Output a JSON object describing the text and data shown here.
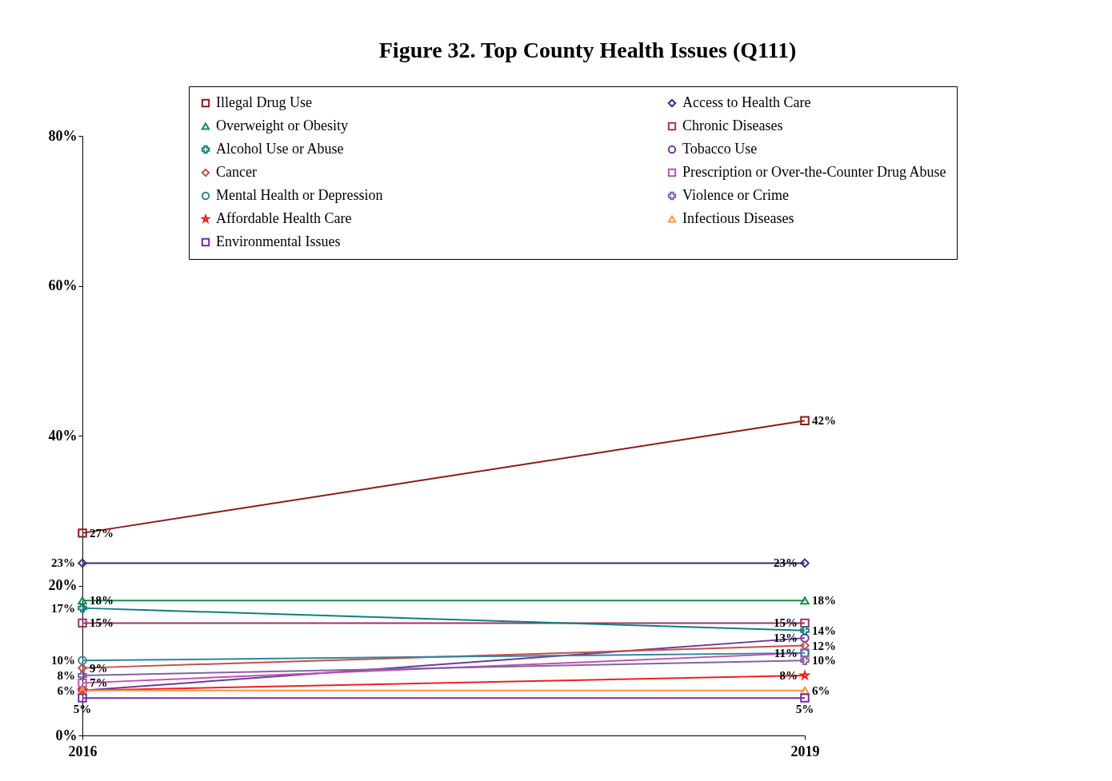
{
  "chart_data": {
    "type": "line",
    "title": "Figure 32. Top County Health Issues (Q111)",
    "categories": [
      "2016",
      "2019"
    ],
    "ylim": [
      0,
      80
    ],
    "yticks": [
      {
        "value": 0,
        "label": "0%"
      },
      {
        "value": 20,
        "label": "20%"
      },
      {
        "value": 40,
        "label": "40%"
      },
      {
        "value": 60,
        "label": "60%"
      },
      {
        "value": 80,
        "label": "80%"
      }
    ],
    "grid": false,
    "legend": "top",
    "series": [
      {
        "name": "Illegal Drug Use",
        "color": "#8b1a1a",
        "marker": "square",
        "values": [
          27,
          42
        ],
        "value_labels": [
          "27%",
          "42%"
        ]
      },
      {
        "name": "Access to Health Care",
        "color": "#2e2e7a",
        "marker": "diamond",
        "values": [
          23,
          23
        ],
        "value_labels": [
          "23%",
          "23%"
        ]
      },
      {
        "name": "Overweight or Obesity",
        "color": "#1a8a4a",
        "marker": "triangle",
        "values": [
          18,
          18
        ],
        "value_labels": [
          "18%",
          "18%"
        ]
      },
      {
        "name": "Chronic Diseases",
        "color": "#a0306a",
        "marker": "square",
        "values": [
          15,
          15
        ],
        "value_labels": [
          "15%",
          "15%"
        ]
      },
      {
        "name": "Alcohol Use or Abuse",
        "color": "#0f7f7f",
        "marker": "cross",
        "values": [
          17,
          14
        ],
        "value_labels": [
          "17%",
          "14%"
        ]
      },
      {
        "name": "Tobacco Use",
        "color": "#6a3a9a",
        "marker": "circle",
        "values": [
          6,
          13
        ],
        "value_labels": [
          null,
          "13%"
        ]
      },
      {
        "name": "Cancer",
        "color": "#c0504d",
        "marker": "diamond",
        "values": [
          9,
          12
        ],
        "value_labels": [
          "9%",
          "12%"
        ]
      },
      {
        "name": "Prescription or Over-the-Counter Drug Abuse",
        "color": "#c050b0",
        "marker": "square",
        "values": [
          7,
          11
        ],
        "value_labels": [
          "7%",
          null
        ]
      },
      {
        "name": "Mental Health or Depression",
        "color": "#31849b",
        "marker": "circle",
        "values": [
          10,
          11
        ],
        "value_labels": [
          "10%",
          "11%"
        ]
      },
      {
        "name": "Violence or Crime",
        "color": "#8064a2",
        "marker": "cross",
        "values": [
          8,
          10
        ],
        "value_labels": [
          "8%",
          "10%"
        ]
      },
      {
        "name": "Affordable Health Care",
        "color": "#ee2020",
        "marker": "star",
        "values": [
          6,
          8
        ],
        "value_labels": [
          "6%",
          "8%"
        ]
      },
      {
        "name": "Infectious Diseases",
        "color": "#f79646",
        "marker": "triangle",
        "values": [
          6,
          6
        ],
        "value_labels": [
          null,
          "6%"
        ]
      },
      {
        "name": "Environmental Issues",
        "color": "#7030a0",
        "marker": "square",
        "values": [
          5,
          5
        ],
        "value_labels": [
          "5%",
          "5%"
        ]
      }
    ]
  }
}
